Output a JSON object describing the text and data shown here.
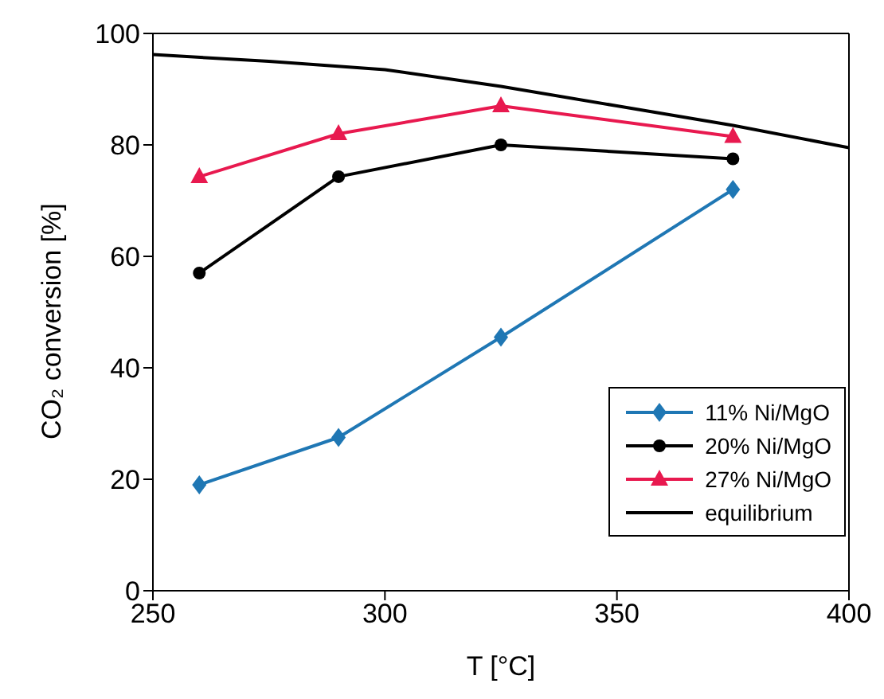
{
  "chart_data": {
    "type": "line",
    "xlabel": "T [°C]",
    "ylabel": "CO₂ conversion [%]",
    "xlim": [
      250,
      400
    ],
    "xticks": [
      250,
      300,
      350,
      400
    ],
    "ylim": [
      0,
      100
    ],
    "yticks": [
      0,
      20,
      40,
      60,
      80,
      100
    ],
    "legend": "bottom right",
    "series": [
      {
        "name": "11% Ni/MgO",
        "color": "#1f77b4",
        "marker": "diamond",
        "x": [
          260,
          290,
          325,
          375
        ],
        "values": [
          19,
          27.5,
          45.5,
          72
        ]
      },
      {
        "name": "20% Ni/MgO",
        "color": "#000000",
        "marker": "circle",
        "x": [
          260,
          290,
          325,
          375
        ],
        "values": [
          57,
          74.3,
          80,
          77.5
        ]
      },
      {
        "name": "27% Ni/MgO",
        "color": "#e8194f",
        "marker": "triangle",
        "x": [
          260,
          290,
          325,
          375
        ],
        "values": [
          74.3,
          82,
          87,
          81.5
        ]
      },
      {
        "name": "equilibrium",
        "color": "#000000",
        "marker": "none",
        "x": [
          250,
          275,
          300,
          325,
          350,
          375,
          400
        ],
        "values": [
          96.2,
          95,
          93.5,
          90.5,
          87,
          83.5,
          79.5
        ]
      }
    ]
  }
}
